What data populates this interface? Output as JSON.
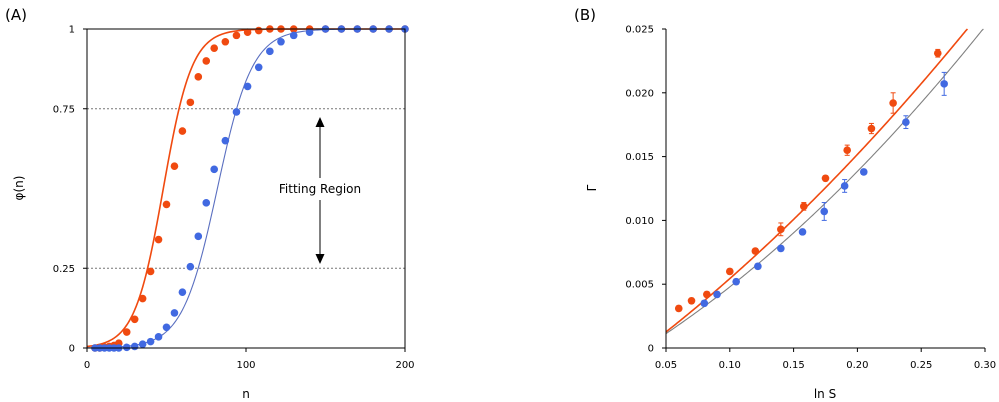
{
  "chart_data": [
    {
      "panel_label": "(A)",
      "type": "scatter",
      "xlabel": "n",
      "ylabel": "φ(n)",
      "xlim": [
        0,
        200
      ],
      "ylim": [
        0,
        1
      ],
      "x_ticks": [
        "0",
        "100",
        "200"
      ],
      "y_ticks": [
        "0",
        "0.25",
        "0.75",
        "1"
      ],
      "reference_lines": [
        0.25,
        0.75
      ],
      "annotation": "Fitting Region",
      "colors": {
        "orange": "#f04a10",
        "blue": "#4169e1",
        "orange_fit": "#f04a10",
        "blue_fit": "#5a6fc0"
      },
      "series": [
        {
          "color": "orange",
          "x": [
            5,
            8,
            11,
            14,
            17,
            20,
            25,
            30,
            35,
            40,
            45,
            50,
            55,
            60,
            65,
            70,
            75,
            80,
            87,
            94,
            101,
            108,
            115,
            122,
            130,
            140,
            150,
            160,
            170,
            180,
            190,
            200
          ],
          "y": [
            0.0,
            0.0,
            0.003,
            0.005,
            0.008,
            0.015,
            0.05,
            0.09,
            0.155,
            0.24,
            0.34,
            0.45,
            0.57,
            0.68,
            0.77,
            0.85,
            0.9,
            0.94,
            0.96,
            0.98,
            0.99,
            0.995,
            1.0,
            1.0,
            1.0,
            1.0,
            1.0,
            1.0,
            1.0,
            1.0,
            1.0,
            1.0
          ],
          "fit": {
            "model": "logistic",
            "midpoint": 48,
            "scale": 9
          }
        },
        {
          "color": "blue",
          "x": [
            5,
            8,
            11,
            14,
            17,
            20,
            25,
            30,
            35,
            40,
            45,
            50,
            55,
            60,
            65,
            70,
            75,
            80,
            87,
            94,
            101,
            108,
            115,
            122,
            130,
            140,
            150,
            160,
            170,
            180,
            190,
            200
          ],
          "y": [
            0.0,
            0.0,
            0.0,
            0.0,
            0.0,
            0.0,
            0.002,
            0.005,
            0.012,
            0.02,
            0.035,
            0.065,
            0.11,
            0.175,
            0.255,
            0.35,
            0.455,
            0.56,
            0.65,
            0.74,
            0.82,
            0.88,
            0.93,
            0.96,
            0.98,
            0.99,
            1.0,
            1.0,
            1.0,
            1.0,
            1.0,
            1.0
          ],
          "fit": {
            "model": "logistic",
            "midpoint": 82,
            "scale": 11
          }
        }
      ]
    },
    {
      "panel_label": "(B)",
      "type": "scatter",
      "xlabel": "ln S",
      "ylabel": "Γ",
      "xlim": [
        0.05,
        0.3
      ],
      "ylim": [
        0,
        0.025
      ],
      "x_ticks": [
        "0.05",
        "0.10",
        "0.15",
        "0.20",
        "0.25",
        "0.30"
      ],
      "y_ticks": [
        "0",
        "0.005",
        "0.010",
        "0.015",
        "0.020",
        "0.025"
      ],
      "colors": {
        "orange": "#f04a10",
        "blue": "#4169e1",
        "orange_fit": "#f04a10",
        "blue_fit": "#808080"
      },
      "series": [
        {
          "color": "orange",
          "x": [
            0.06,
            0.07,
            0.082,
            0.1,
            0.12,
            0.14,
            0.158,
            0.175,
            0.192,
            0.211,
            0.228,
            0.263
          ],
          "y": [
            0.0031,
            0.0037,
            0.0042,
            0.006,
            0.0076,
            0.0093,
            0.0111,
            0.0133,
            0.0155,
            0.0172,
            0.0192,
            0.0231
          ],
          "err": [
            0.0002,
            0.0002,
            0.0002,
            0.0002,
            0.0002,
            0.0005,
            0.0003,
            0.0002,
            0.0004,
            0.0004,
            0.0008,
            0.0003
          ],
          "fit": {
            "model": "quadratic",
            "coef": [
              -0.00247,
              0.07,
              0.091
            ]
          }
        },
        {
          "color": "blue",
          "x": [
            0.08,
            0.09,
            0.105,
            0.122,
            0.14,
            0.157,
            0.174,
            0.19,
            0.205,
            0.238,
            0.268
          ],
          "y": [
            0.0035,
            0.0042,
            0.0052,
            0.0064,
            0.0078,
            0.0091,
            0.0107,
            0.0127,
            0.0138,
            0.0177,
            0.0207
          ],
          "err": [
            0.0002,
            0.0002,
            0.0002,
            0.0002,
            0.0002,
            0.0002,
            0.0007,
            0.0005,
            0.0002,
            0.0005,
            0.0009
          ],
          "fit": {
            "model": "quadratic",
            "coef": [
              -0.00196,
              0.056,
              0.115
            ]
          }
        }
      ]
    }
  ]
}
